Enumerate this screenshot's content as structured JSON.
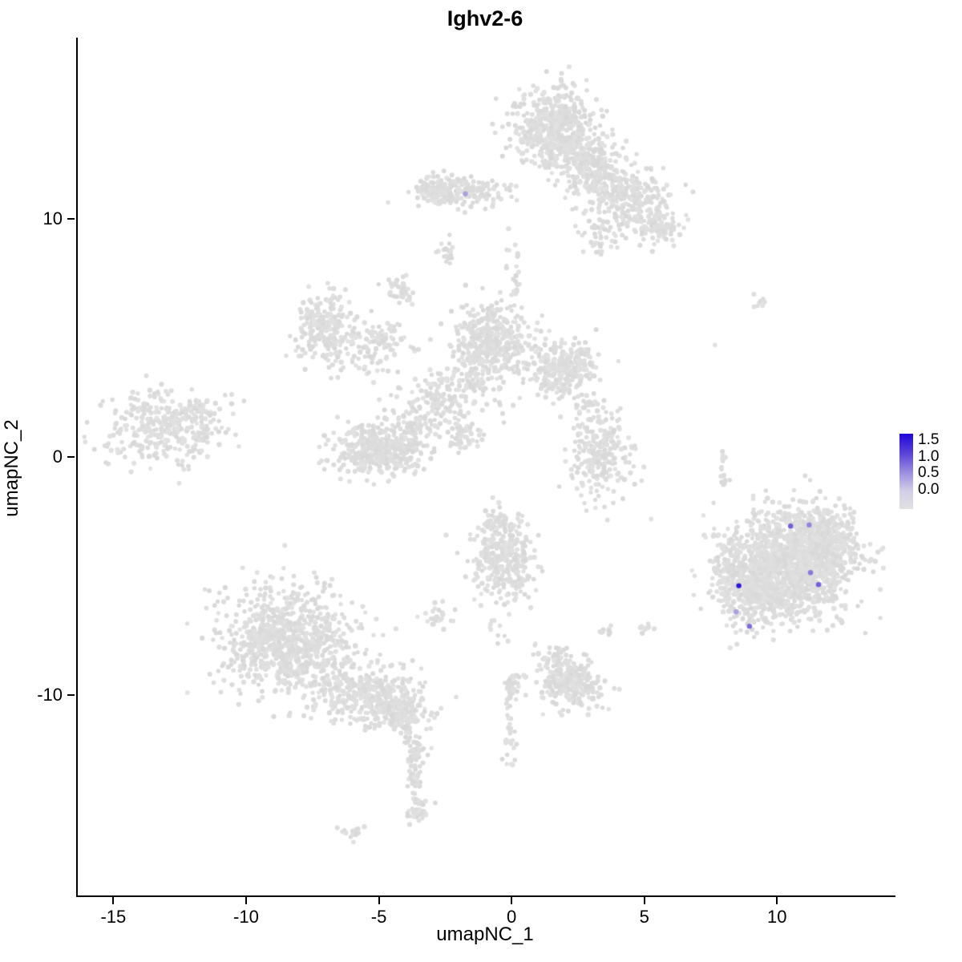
{
  "chart_data": {
    "type": "scatter",
    "title": "Ighv2-6",
    "xlabel": "umapNC_1",
    "ylabel": "umapNC_2",
    "xlim": [
      -16.4,
      14.4
    ],
    "ylim": [
      -18.4,
      17.6
    ],
    "x_ticks": [
      "-15",
      "-10",
      "-5",
      "0",
      "5",
      "10"
    ],
    "y_ticks": [
      "-10",
      "0",
      "10"
    ],
    "grid": false,
    "legend": {
      "position": "right",
      "ticks": [
        "1.5",
        "1.0",
        "0.5",
        "0.0"
      ],
      "vmax": 1.75,
      "low_color": "#E1E1E1",
      "high_color": "#1A00D6"
    },
    "point_color_zero": "#E1E1E1",
    "clusters": [
      [
        1.6,
        13.8,
        0.75,
        0.85,
        520
      ],
      [
        2.9,
        12.2,
        0.6,
        0.6,
        260
      ],
      [
        4.3,
        10.9,
        0.8,
        0.6,
        260
      ],
      [
        5.5,
        9.6,
        0.45,
        0.4,
        90
      ],
      [
        -1.9,
        11.1,
        0.85,
        0.28,
        160
      ],
      [
        -2.8,
        11.2,
        0.35,
        0.3,
        70
      ],
      [
        3.2,
        9.2,
        0.5,
        0.4,
        40
      ],
      [
        -2.5,
        8.6,
        0.15,
        0.35,
        18
      ],
      [
        0.1,
        7.9,
        0.2,
        0.8,
        20
      ],
      [
        -7.1,
        5.4,
        0.55,
        0.75,
        230
      ],
      [
        -5.6,
        4.3,
        0.8,
        0.5,
        70
      ],
      [
        -4.3,
        7.0,
        0.28,
        0.28,
        45
      ],
      [
        -4.7,
        5.0,
        0.4,
        0.35,
        40
      ],
      [
        -0.8,
        4.8,
        0.75,
        0.8,
        470
      ],
      [
        1.9,
        3.7,
        0.65,
        0.6,
        310
      ],
      [
        -2.3,
        2.8,
        0.8,
        0.55,
        130
      ],
      [
        -5.1,
        0.3,
        0.85,
        0.55,
        420
      ],
      [
        -3.4,
        1.7,
        0.7,
        0.5,
        90
      ],
      [
        -1.9,
        0.9,
        0.35,
        0.3,
        50
      ],
      [
        -13.3,
        1.2,
        1.05,
        0.75,
        320
      ],
      [
        -11.7,
        1.8,
        0.5,
        0.55,
        40
      ],
      [
        3.3,
        0.1,
        0.55,
        0.95,
        270
      ],
      [
        2.9,
        2.2,
        0.2,
        0.2,
        14
      ],
      [
        -0.35,
        -4.2,
        0.6,
        0.85,
        310
      ],
      [
        -0.6,
        -2.8,
        0.3,
        0.25,
        40
      ],
      [
        -8.5,
        -7.7,
        1.2,
        1.1,
        850
      ],
      [
        -5.7,
        -9.9,
        1.0,
        0.6,
        320
      ],
      [
        -4.2,
        -10.6,
        0.5,
        0.5,
        160
      ],
      [
        -3.6,
        -12.3,
        0.22,
        0.3,
        25
      ],
      [
        -3.55,
        -14.9,
        0.3,
        0.25,
        30
      ],
      [
        -6.0,
        -15.8,
        0.25,
        0.15,
        15
      ],
      [
        -2.8,
        -6.7,
        0.3,
        0.25,
        28
      ],
      [
        2.2,
        -9.5,
        0.55,
        0.5,
        240
      ],
      [
        1.5,
        -8.5,
        0.3,
        0.3,
        35
      ],
      [
        0.1,
        -9.5,
        0.2,
        0.3,
        22
      ],
      [
        3.5,
        -7.35,
        0.15,
        0.15,
        10
      ],
      [
        4.95,
        -7.2,
        0.18,
        0.12,
        10
      ],
      [
        10.6,
        -4.4,
        1.2,
        1.1,
        1250
      ],
      [
        9.3,
        -5.7,
        0.75,
        0.75,
        320
      ],
      [
        11.7,
        -3.3,
        0.65,
        0.65,
        220
      ],
      [
        8.1,
        -4.6,
        0.35,
        0.85,
        110
      ],
      [
        9.2,
        6.55,
        0.15,
        0.12,
        8
      ]
    ],
    "trails": [
      [
        -4.05,
        -11.0,
        -3.55,
        -14.6,
        60,
        0.13
      ],
      [
        -0.15,
        -9.4,
        -0.1,
        -13.1,
        48,
        0.12
      ],
      [
        7.85,
        0.9,
        7.95,
        -1.3,
        20,
        0.08
      ],
      [
        -0.75,
        -6.6,
        -0.5,
        -8.0,
        10,
        0.15
      ]
    ],
    "singles": [
      [
        -2.9,
        8.6
      ],
      [
        -2.7,
        8.95
      ],
      [
        7.6,
        4.7
      ],
      [
        2.5,
        1.9
      ],
      [
        -10.85,
        2.6
      ],
      [
        5.2,
        -2.6
      ],
      [
        0.15,
        6.95
      ],
      [
        -0.35,
        1.45
      ]
    ],
    "expressing_cells": [
      {
        "x": -1.8,
        "y": 11.05,
        "value": 0.5
      },
      {
        "x": 8.5,
        "y": -5.4,
        "value": 1.6
      },
      {
        "x": 10.45,
        "y": -2.9,
        "value": 1.0
      },
      {
        "x": 11.15,
        "y": -2.85,
        "value": 0.7
      },
      {
        "x": 11.2,
        "y": -4.85,
        "value": 0.8
      },
      {
        "x": 11.5,
        "y": -5.35,
        "value": 1.0
      },
      {
        "x": 8.4,
        "y": -6.5,
        "value": 0.5
      },
      {
        "x": 8.9,
        "y": -7.1,
        "value": 0.9
      }
    ]
  }
}
